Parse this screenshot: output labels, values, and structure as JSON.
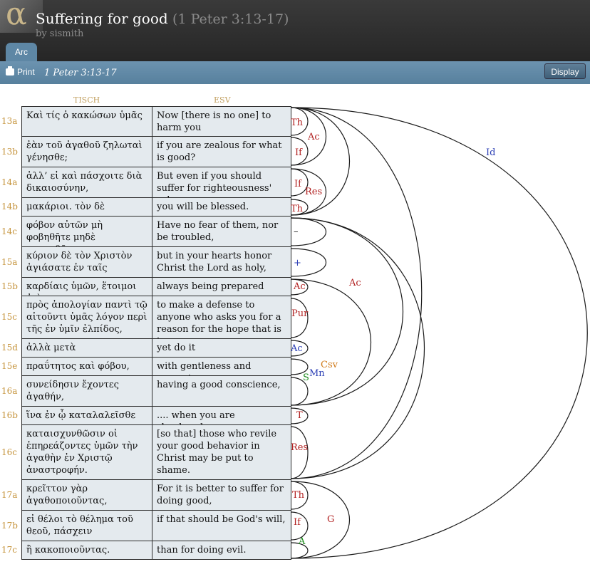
{
  "header": {
    "logo_glyph": "α",
    "title": "Suffering for good",
    "reference": "(1 Peter 3:13-17)",
    "author": "by sismith"
  },
  "tabs": [
    {
      "label": "Arc"
    }
  ],
  "toolbar": {
    "print_label": "Print",
    "passage": "1 Peter 3:13-17",
    "display_label": "Display"
  },
  "columns": {
    "greek": "TISCH",
    "english": "ESV"
  },
  "rows": [
    {
      "label": "13a",
      "greek": "Καὶ τίς ὁ κακώσων ὑμᾶς",
      "english": "Now [there is no one] to harm you"
    },
    {
      "label": "13b",
      "greek": "ἐὰν τοῦ ἀγαθοῦ ζηλωταὶ γένησθε;",
      "english": "if you are zealous for what is good?"
    },
    {
      "label": "14a",
      "greek": "ἀλλ’ εἰ καὶ πάσχοιτε διὰ δικαιοσύνην,",
      "english": "But even if you should suffer for righteousness' sake,"
    },
    {
      "label": "14b",
      "greek": "μακάριοι. τὸν δὲ",
      "english": "you will be blessed."
    },
    {
      "label": "14c",
      "greek": "φόβον αὐτῶν μὴ φοβηθῆτε μηδὲ ταραχθῆτε,",
      "english": "Have no fear of them, nor be troubled,"
    },
    {
      "label": "15a",
      "greek": "κύριον δὲ τὸν Χριστὸν ἁγιάσατε ἐν ταῖς",
      "english": "but in your hearts honor Christ the Lord as holy,"
    },
    {
      "label": "15b",
      "greek": "καρδίαις ὑμῶν, ἕτοιμοι ἀεὶ",
      "english": "always being prepared"
    },
    {
      "label": "15c",
      "greek": "πρὸς ἀπολογίαν παντὶ τῷ αἰτοῦντι ὑμᾶς λόγον περὶ τῆς ἐν ὑμῖν ἐλπίδος,",
      "english": "to make a defense to anyone who asks you for a reason for the hope that is in you;"
    },
    {
      "label": "15d",
      "greek": "ἀλλὰ μετὰ",
      "english": "yet do it"
    },
    {
      "label": "15e",
      "greek": "πραΰτητος καὶ φόβου,",
      "english": "with gentleness and respect,"
    },
    {
      "label": "16a",
      "greek": "συνείδησιν ἔχοντες ἀγαθήν,",
      "english": "having a good conscience,"
    },
    {
      "label": "16b",
      "greek": "ἵνα ἐν ᾧ καταλαλεῖσθε",
      "english": ".... when you are slandered,"
    },
    {
      "label": "16c",
      "greek": "καταισχυνθῶσιν οἱ ἐπηρεάζοντες ὑμῶν τὴν ἀγαθὴν ἐν Χριστῷ ἀναστροφήν.",
      "english": "[so that] those who revile your good behavior in Christ may be put to shame."
    },
    {
      "label": "17a",
      "greek": "κρεῖττον γὰρ ἀγαθοποιοῦντας,",
      "english": "For it is better to suffer for doing good,"
    },
    {
      "label": "17b",
      "greek": "εἰ θέλοι τὸ θέλημα τοῦ θεοῦ, πάσχειν",
      "english": "if that should be God's will,"
    },
    {
      "label": "17c",
      "greek": "ἢ κακοποιοῦντας.",
      "english": "than for doing evil."
    }
  ],
  "arc_labels": [
    {
      "text": "Th",
      "color": "#b22222"
    },
    {
      "text": "If",
      "color": "#b22222"
    },
    {
      "text": "Ac",
      "color": "#b22222"
    },
    {
      "text": "If",
      "color": "#b22222"
    },
    {
      "text": "Th",
      "color": "#b22222"
    },
    {
      "text": "Res",
      "color": "#b22222"
    },
    {
      "text": "–",
      "color": "#222222"
    },
    {
      "text": "+",
      "color": "#2c3fb5"
    },
    {
      "text": "Ac",
      "color": "#b22222"
    },
    {
      "text": "Pur",
      "color": "#b22222"
    },
    {
      "text": "Ac",
      "color": "#2c3fb5"
    },
    {
      "text": "Csv",
      "color": "#d07a1a"
    },
    {
      "text": "Mn",
      "color": "#2c3fb5"
    },
    {
      "text": "S",
      "color": "#1a8a1a"
    },
    {
      "text": "T",
      "color": "#b22222"
    },
    {
      "text": "Res",
      "color": "#b22222"
    },
    {
      "text": "Ac",
      "color": "#b22222"
    },
    {
      "text": "Th",
      "color": "#b22222"
    },
    {
      "text": "If",
      "color": "#b22222"
    },
    {
      "text": "G",
      "color": "#b22222"
    },
    {
      "text": "A",
      "color": "#1a8a1a"
    },
    {
      "text": "Id",
      "color": "#2c3fb5"
    }
  ]
}
